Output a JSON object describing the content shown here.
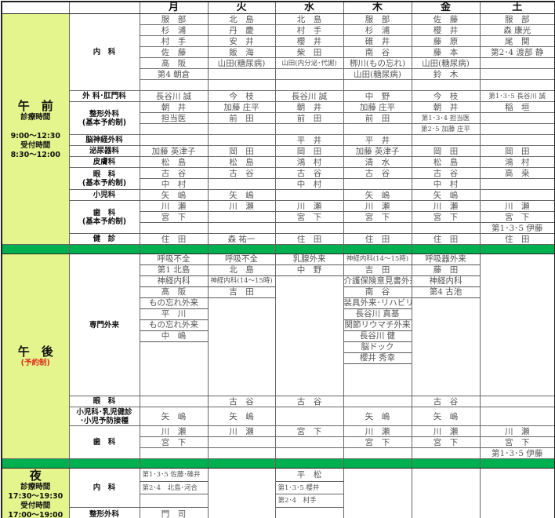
{
  "header": {
    "days": [
      "月",
      "火",
      "水",
      "木",
      "金",
      "土"
    ]
  },
  "colors": {
    "side_bg": "#e3f58c",
    "band": "#00b050",
    "note": "#e0301e"
  },
  "morning": {
    "label": "午　前",
    "hours_label": "診療時間",
    "hours": "9:00〜12:30",
    "reception_label": "受付時間",
    "reception": "8:30〜12:00",
    "departments": [
      {
        "name": [
          "内　科"
        ],
        "rows": [
          [
            "服　部",
            "北　島",
            "北　島",
            "服　部",
            "佐　藤",
            "服　部"
          ],
          [
            "杉　浦",
            "丹　慶",
            "村　手",
            "杉　浦",
            "櫻　井",
            "森 康光"
          ],
          [
            "村　手",
            "安　井",
            "櫻　井",
            "碓　井",
            "藤　原",
            "尾　関"
          ],
          [
            "佐　藤",
            "飯　海",
            "柴　田",
            "南　谷",
            "藤　本",
            "第2･4 渡部 静"
          ],
          [
            "髙　阪",
            "山田(糖尿病)",
            "山田(内分泌･代謝)",
            "栁川(もの忘れ)",
            "山田(糖尿病)",
            ""
          ],
          [
            "第4 朝倉",
            "",
            "",
            "山田(糖尿病)",
            "鈴　木",
            ""
          ],
          [
            "",
            "",
            "",
            "",
            "",
            ""
          ]
        ]
      },
      {
        "name": [
          "外 科･肛門科"
        ],
        "rows": [
          [
            "長谷川 誠",
            "今　枝",
            "長谷川 誠",
            "中　野",
            "今　枝",
            "第1･3･5 長谷川 誠"
          ]
        ]
      },
      {
        "name": [
          "整形外科",
          "(基本予約制)"
        ],
        "rows": [
          [
            "朝　井",
            "加藤 庄平",
            "朝　井",
            "加藤 庄平",
            "朝　井",
            "稲　垣"
          ],
          [
            "担当医",
            "前　田",
            "前　田",
            "前　田",
            "第1･3･4 担当医",
            ""
          ],
          [
            "",
            "",
            "",
            "",
            "第2･5 加藤 庄平",
            ""
          ]
        ]
      },
      {
        "name": [
          "脳神経外科"
        ],
        "rows": [
          [
            "",
            "",
            "平　井",
            "平　井",
            "",
            ""
          ]
        ]
      },
      {
        "name": [
          "泌尿器科"
        ],
        "rows": [
          [
            "加藤 英津子",
            "岡　田",
            "岡　田",
            "加藤 英津子",
            "岡　田",
            "岡　田"
          ]
        ]
      },
      {
        "name": [
          "皮膚科"
        ],
        "rows": [
          [
            "松　島",
            "松　島",
            "鴻　村",
            "清　水",
            "松　島",
            "鴻　村"
          ]
        ]
      },
      {
        "name": [
          "眼　科",
          "(基本予約制)"
        ],
        "rows": [
          [
            "古　谷",
            "古　谷",
            "古　谷",
            "古　谷",
            "古　谷",
            "高　桒"
          ],
          [
            "中　村",
            "",
            "中　村",
            "",
            "中　村",
            ""
          ]
        ]
      },
      {
        "name": [
          "小児科"
        ],
        "rows": [
          [
            "矢　嶋",
            "矢　嶋",
            "",
            "矢　嶋",
            "矢　嶋",
            ""
          ]
        ]
      },
      {
        "name": [
          "歯　科",
          "(基本予約制)"
        ],
        "rows": [
          [
            "川　瀬",
            "川　瀬",
            "川　瀬",
            "川　瀬",
            "川　瀬",
            "川　瀬"
          ],
          [
            "宮　下",
            "",
            "宮　下",
            "宮　下",
            "宮　下",
            "宮　下"
          ],
          [
            "",
            "",
            "",
            "",
            "",
            "第1･3･5 伊藤"
          ]
        ]
      },
      {
        "name": [
          "健　診"
        ],
        "rows": [
          [
            "住　田",
            "森 祐一",
            "住　田",
            "住　田",
            "住　田",
            "住　田"
          ]
        ]
      }
    ]
  },
  "afternoon": {
    "label": "午　後",
    "note": "(予約制)",
    "specialty": {
      "name": "専門外来",
      "columns": [
        [
          "呼吸不全",
          "第1 北島",
          "神経内科",
          "髙　阪",
          "もの忘れ外来",
          "平　川",
          "もの忘れ外来",
          "中　嶋"
        ],
        [
          "呼吸不全",
          "北　島",
          "神経内科(14〜15時)",
          "吉　田"
        ],
        [
          "乳腺外来",
          "中　野"
        ],
        [
          "神経内科(14〜15時)",
          "吉　田",
          "介護保険意見書外来",
          "南　谷",
          "装具外来･リハビリ",
          "長谷川 真基",
          "関節リウマチ外来",
          "長谷川 健",
          "脳ドック",
          "櫻井 秀幸"
        ],
        [
          "呼吸器外来",
          "藤　田",
          "神経内科",
          "第4 古池"
        ],
        []
      ]
    },
    "departments": [
      {
        "name": [
          "眼　科"
        ],
        "rows": [
          [
            "",
            "古　谷",
            "古　谷",
            "",
            "古　谷",
            ""
          ]
        ]
      },
      {
        "name": [
          "小児科･乳児健診",
          "･小児予防接種"
        ],
        "tall": true,
        "rows": [
          [
            "矢　嶋",
            "矢　嶋",
            "",
            "矢　嶋",
            "矢　嶋",
            ""
          ]
        ]
      },
      {
        "name": [
          "歯　科"
        ],
        "rows": [
          [
            "川　瀬",
            "川　瀬",
            "宮　下",
            "川　瀬",
            "川　瀬",
            "川　瀬"
          ],
          [
            "宮　下",
            "",
            "",
            "宮　下",
            "宮　下",
            "宮　下"
          ],
          [
            "",
            "",
            "",
            "",
            "",
            "第1･3･5 伊藤"
          ]
        ]
      }
    ]
  },
  "night": {
    "label": "夜",
    "hours_label": "診療時間",
    "hours": "17:30〜19:30",
    "reception_label": "受付時間",
    "reception": "17:00〜19:00",
    "departments": [
      "内　科",
      "整形外科"
    ],
    "columns": [
      [
        "第1･3･5 佐藤･碓井",
        "第2･4　北島･河合",
        "",
        "門　司"
      ],
      [],
      [
        "平　松",
        "第1･3･5 櫻井",
        "第2･4　村手",
        ""
      ],
      [],
      [],
      []
    ]
  }
}
